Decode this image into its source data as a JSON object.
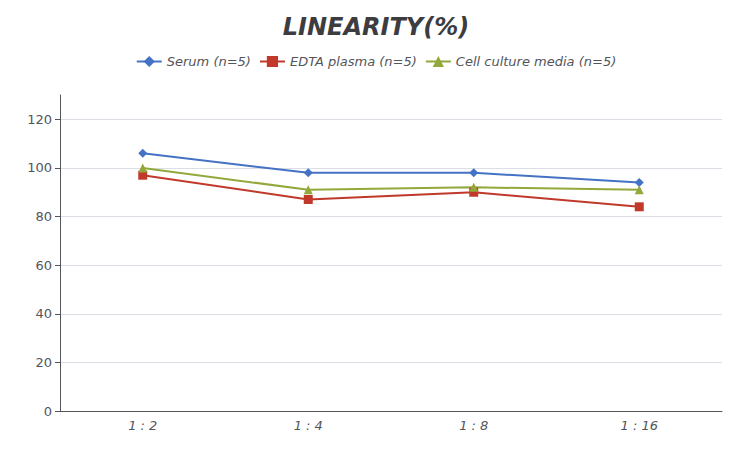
{
  "chart_data": {
    "type": "line",
    "title": "LINEARITY(%)",
    "categories": [
      "1 : 2",
      "1 : 4",
      "1 : 8",
      "1 : 16"
    ],
    "series": [
      {
        "name": "Serum (n=5)",
        "color": "#4472C4",
        "marker": "diamond",
        "values": [
          106,
          98,
          98,
          94
        ]
      },
      {
        "name": "EDTA plasma (n=5)",
        "color": "#C0392B",
        "marker": "square",
        "values": [
          97,
          87,
          90,
          84
        ]
      },
      {
        "name": "Cell culture media (n=5)",
        "color": "#92A83A",
        "marker": "triangle",
        "values": [
          100,
          91,
          92,
          91
        ]
      }
    ],
    "ylim": [
      0,
      130
    ],
    "yticks": [
      0,
      20,
      40,
      60,
      80,
      100,
      120
    ],
    "grid": true,
    "legend": "top"
  }
}
